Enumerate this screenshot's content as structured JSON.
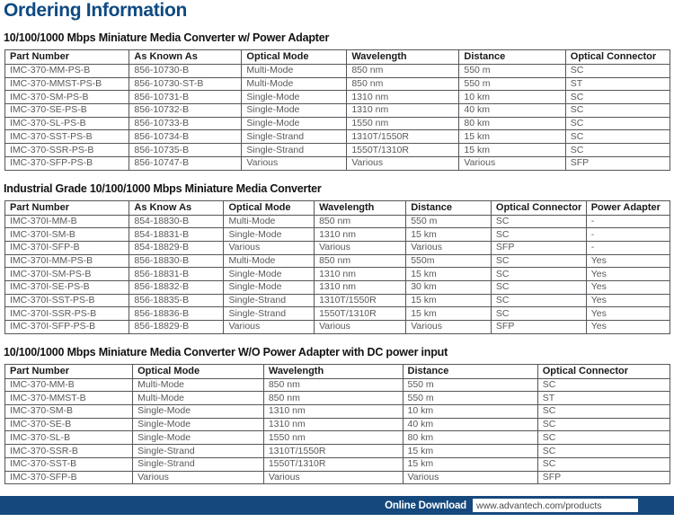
{
  "page": {
    "title": "Ordering Information"
  },
  "colors": {
    "title_blue": "#0e4a82",
    "footer_bar_navy": "#15497d",
    "table_border_gray": "#54565a",
    "body_text_gray": "#58595b"
  },
  "tables": [
    {
      "heading": "10/100/1000 Mbps Miniature Media Converter w/ Power Adapter",
      "columns": [
        "Part Number",
        "As Known As",
        "Optical Mode",
        "Wavelength",
        "Distance",
        "Optical Connector"
      ],
      "rows": [
        [
          "IMC-370-MM-PS-B",
          "856-10730-B",
          "Multi-Mode",
          "850 nm",
          "550 m",
          "SC"
        ],
        [
          "IMC-370-MMST-PS-B",
          "856-10730-ST-B",
          "Multi-Mode",
          "850 nm",
          "550 m",
          "ST"
        ],
        [
          "IMC-370-SM-PS-B",
          "856-10731-B",
          "Single-Mode",
          "1310 nm",
          "10 km",
          "SC"
        ],
        [
          "IMC-370-SE-PS-B",
          "856-10732-B",
          "Single-Mode",
          "1310 nm",
          "40 km",
          "SC"
        ],
        [
          "IMC-370-SL-PS-B",
          "856-10733-B",
          "Single-Mode",
          "1550 nm",
          "80 km",
          "SC"
        ],
        [
          "IMC-370-SST-PS-B",
          "856-10734-B",
          "Single-Strand",
          "1310T/1550R",
          "15 km",
          "SC"
        ],
        [
          "IMC-370-SSR-PS-B",
          "856-10735-B",
          "Single-Strand",
          "1550T/1310R",
          "15 km",
          "SC"
        ],
        [
          "IMC-370-SFP-PS-B",
          "856-10747-B",
          "Various",
          "Various",
          "Various",
          "SFP"
        ]
      ]
    },
    {
      "heading": "Industrial Grade 10/100/1000 Mbps Miniature Media Converter",
      "columns": [
        "Part Number",
        "As Know As",
        "Optical Mode",
        "Wavelength",
        "Distance",
        "Optical Connector",
        "Power Adapter"
      ],
      "rows": [
        [
          "IMC-370I-MM-B",
          "854-18830-B",
          "Multi-Mode",
          "850 nm",
          "550 m",
          "SC",
          "-"
        ],
        [
          "IMC-370I-SM-B",
          "854-18831-B",
          "Single-Mode",
          "1310 nm",
          "15 km",
          "SC",
          "-"
        ],
        [
          "IMC-370I-SFP-B",
          "854-18829-B",
          "Various",
          "Various",
          "Various",
          "SFP",
          "-"
        ],
        [
          "IMC-370I-MM-PS-B",
          "856-18830-B",
          "Multi-Mode",
          "850 nm",
          "550m",
          "SC",
          "Yes"
        ],
        [
          "IMC-370I-SM-PS-B",
          "856-18831-B",
          "Single-Mode",
          "1310 nm",
          "15 km",
          "SC",
          "Yes"
        ],
        [
          "IMC-370I-SE-PS-B",
          "856-18832-B",
          "Single-Mode",
          "1310 nm",
          "30 km",
          "SC",
          "Yes"
        ],
        [
          "IMC-370I-SST-PS-B",
          "856-18835-B",
          "Single-Strand",
          "1310T/1550R",
          "15 km",
          "SC",
          "Yes"
        ],
        [
          "IMC-370I-SSR-PS-B",
          "856-18836-B",
          "Single-Strand",
          "1550T/1310R",
          "15 km",
          "SC",
          "Yes"
        ],
        [
          "IMC-370I-SFP-PS-B",
          "856-18829-B",
          "Various",
          "Various",
          "Various",
          "SFP",
          "Yes"
        ]
      ]
    },
    {
      "heading": "10/100/1000 Mbps Miniature Media Converter W/O Power Adapter with DC power input",
      "columns": [
        "Part Number",
        "Optical Mode",
        "Wavelength",
        "Distance",
        "Optical Connector"
      ],
      "rows": [
        [
          "IMC-370-MM-B",
          "Multi-Mode",
          "850 nm",
          "550 m",
          "SC"
        ],
        [
          "IMC-370-MMST-B",
          "Multi-Mode",
          "850 nm",
          "550 m",
          "ST"
        ],
        [
          "IMC-370-SM-B",
          "Single-Mode",
          "1310 nm",
          "10 km",
          "SC"
        ],
        [
          "IMC-370-SE-B",
          "Single-Mode",
          "1310 nm",
          "40 km",
          "SC"
        ],
        [
          "IMC-370-SL-B",
          "Single-Mode",
          "1550 nm",
          "80 km",
          "SC"
        ],
        [
          "IMC-370-SSR-B",
          "Single-Strand",
          "1310T/1550R",
          "15 km",
          "SC"
        ],
        [
          "IMC-370-SST-B",
          "Single-Strand",
          "1550T/1310R",
          "15 km",
          "SC"
        ],
        [
          "IMC-370-SFP-B",
          "Various",
          "Various",
          "Various",
          "SFP"
        ]
      ]
    }
  ],
  "footer": {
    "download_label": "Online Download",
    "url": "www.advantech.com/products"
  }
}
